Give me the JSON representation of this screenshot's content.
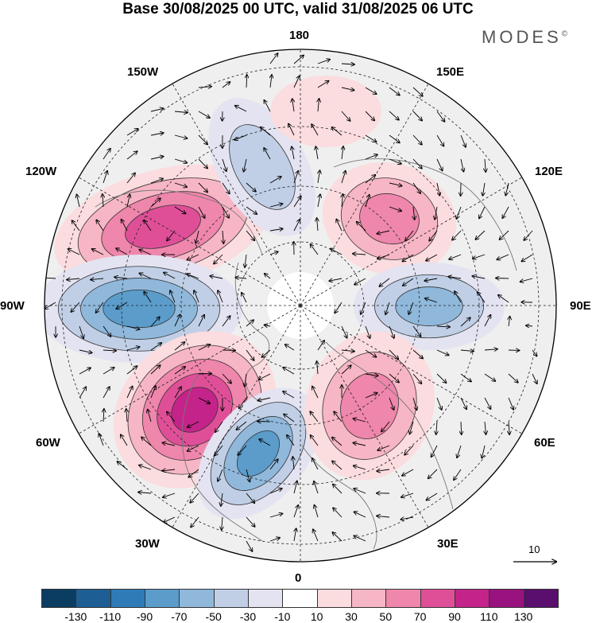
{
  "title": "Base 30/08/2025 00 UTC, valid 31/08/2025 06 UTC",
  "brand": "MODES",
  "brand_mark": "©",
  "longitude_labels": {
    "top": "180",
    "bottom": "0",
    "left": "90W",
    "right": "90E",
    "nw150": "150W",
    "nw120": "120W",
    "ne150": "150E",
    "ne120": "120E",
    "sw60": "60W",
    "sw30": "30W",
    "se60": "60E",
    "se30": "30E"
  },
  "reference_vector": {
    "label": "10"
  },
  "colorbar": {
    "labels": [
      "-130",
      "-110",
      "-90",
      "-70",
      "-50",
      "-30",
      "-10",
      "10",
      "30",
      "50",
      "70",
      "90",
      "110",
      "130"
    ],
    "colors": [
      "#0b3d63",
      "#1d5f94",
      "#2f7bb8",
      "#5b9ccb",
      "#8fb8db",
      "#c0cfe6",
      "#e4e3f1",
      "#ffffff",
      "#fbdcdf",
      "#f7b6c5",
      "#ef86ac",
      "#df4f98",
      "#c4248a",
      "#98137f",
      "#5a0e6e"
    ]
  },
  "anomalies": [
    {
      "name": "anomaly-west-pacific-positive",
      "value": 90
    },
    {
      "name": "anomaly-canada-negative",
      "value": -90
    },
    {
      "name": "anomaly-atlantic-positive",
      "value": 110
    },
    {
      "name": "anomaly-north-atlantic-negative",
      "value": -90
    },
    {
      "name": "anomaly-siberia-positive",
      "value": 70
    },
    {
      "name": "anomaly-central-asia-negative",
      "value": -70
    },
    {
      "name": "anomaly-europe-positive",
      "value": 70
    },
    {
      "name": "anomaly-bering-negative",
      "value": -50
    },
    {
      "name": "anomaly-pacific-positive",
      "value": 30
    }
  ]
}
